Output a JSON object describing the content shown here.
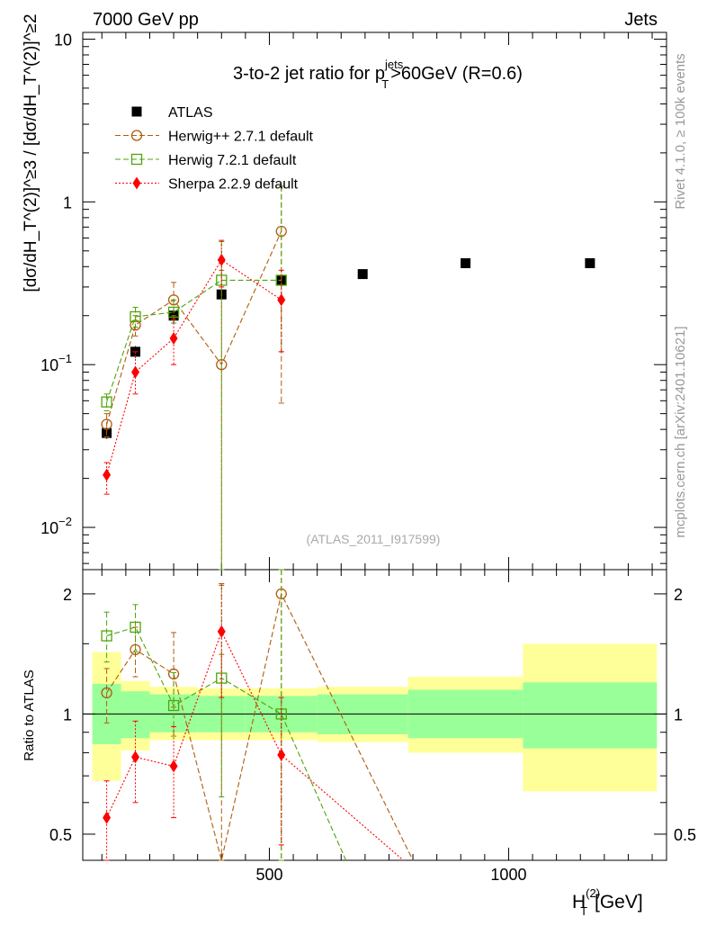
{
  "header": {
    "left": "7000 GeV pp",
    "right": "Jets"
  },
  "side_labels": {
    "rivet": "Rivet 4.1.0, ≥ 100k events",
    "mcplots": "mcplots.cern.ch [arXiv:2401.10621]"
  },
  "chart_data": {
    "type": "scatter",
    "title_main": "3-to-2 jet ratio for p",
    "title_sup": "jets",
    "title_sub": "T",
    "title_tail": ">60GeV (R=0.6)",
    "analysis_label": "(ATLAS_2011_I917599)",
    "ylabel": "[dσ/dH_T^(2)]^≥3 / [dσ/dH_T^(2)]^≥2",
    "ratio_ylabel": "Ratio to ATLAS",
    "xlabel_main": "H",
    "xlabel_sub": "T",
    "xlabel_sup": "(2)",
    "xlabel_unit": "[GeV]",
    "xlim": [
      110,
      1330
    ],
    "ylim": [
      0.0055,
      11
    ],
    "ratio_ylim": [
      0.43,
      2.3
    ],
    "x_ticks": [
      500,
      1000
    ],
    "y_ticks_main": [
      {
        "value": 10,
        "label": "10"
      },
      {
        "value": 1,
        "label": "1"
      },
      {
        "value": 0.1,
        "label": "10",
        "exp": "−1"
      },
      {
        "value": 0.01,
        "label": "10",
        "exp": "−2"
      }
    ],
    "y_ticks_ratio": [
      {
        "value": 2,
        "label": "2"
      },
      {
        "value": 1,
        "label": "1"
      },
      {
        "value": 0.5,
        "label": "0.5"
      }
    ],
    "bins": [
      {
        "lo": 130,
        "hi": 190,
        "band_green": [
          0.84,
          1.19
        ],
        "band_yellow": [
          0.68,
          1.43
        ]
      },
      {
        "lo": 190,
        "hi": 250,
        "band_green": [
          0.87,
          1.14
        ],
        "band_yellow": [
          0.81,
          1.21
        ]
      },
      {
        "lo": 250,
        "hi": 350,
        "band_green": [
          0.9,
          1.12
        ],
        "band_yellow": [
          0.86,
          1.17
        ]
      },
      {
        "lo": 350,
        "hi": 450,
        "band_green": [
          0.9,
          1.11
        ],
        "band_yellow": [
          0.86,
          1.16
        ]
      },
      {
        "lo": 450,
        "hi": 600,
        "band_green": [
          0.9,
          1.11
        ],
        "band_yellow": [
          0.86,
          1.16
        ]
      },
      {
        "lo": 600,
        "hi": 790,
        "band_green": [
          0.89,
          1.12
        ],
        "band_yellow": [
          0.85,
          1.17
        ]
      },
      {
        "lo": 790,
        "hi": 1030,
        "band_green": [
          0.87,
          1.15
        ],
        "band_yellow": [
          0.8,
          1.24
        ]
      },
      {
        "lo": 1030,
        "hi": 1310,
        "band_green": [
          0.82,
          1.2
        ],
        "band_yellow": [
          0.64,
          1.5
        ]
      }
    ],
    "series": [
      {
        "name": "ATLAS",
        "color": "#000000",
        "marker": "square-filled",
        "dash": "",
        "x": [
          160,
          220,
          300,
          400,
          525,
          695,
          910,
          1170
        ],
        "y": [
          0.038,
          0.12,
          0.2,
          0.27,
          0.33,
          0.36,
          0.42,
          0.42
        ],
        "err_lo": [
          0.035,
          0.11,
          0.18,
          0.25,
          0.31,
          0.34,
          0.4,
          0.4
        ],
        "err_hi": [
          0.041,
          0.13,
          0.22,
          0.29,
          0.35,
          0.38,
          0.44,
          0.44
        ]
      },
      {
        "name": "Herwig++ 2.7.1 default",
        "color": "#b15c0c",
        "marker": "circle-open",
        "dash": "6,3",
        "x": [
          160,
          220,
          300,
          400,
          525
        ],
        "y": [
          0.043,
          0.175,
          0.25,
          0.1,
          0.66
        ],
        "err_lo": [
          0.036,
          0.15,
          0.2,
          0.004,
          0.058
        ],
        "err_hi": [
          0.05,
          0.2,
          0.32,
          0.38,
          1.25
        ],
        "ratio": [
          1.13,
          1.45,
          1.26,
          0.38,
          2.0
        ],
        "ratio_err_lo": [
          0.95,
          1.24,
          1.04,
          0.05,
          0.18
        ],
        "ratio_err_hi": [
          1.3,
          1.65,
          1.6,
          1.41,
          3.8
        ]
      },
      {
        "name": "Herwig 7.2.1 default",
        "color": "#4fa40a",
        "marker": "square-open",
        "dash": "6,3",
        "x": [
          160,
          220,
          300,
          400,
          525
        ],
        "y": [
          0.059,
          0.197,
          0.21,
          0.33,
          0.33
        ],
        "err_lo": [
          0.052,
          0.17,
          0.18,
          0.004,
          0.12
        ],
        "err_hi": [
          0.066,
          0.225,
          0.25,
          0.57,
          1.25
        ],
        "ratio": [
          1.57,
          1.65,
          1.05,
          1.23,
          1.0
        ],
        "ratio_err_lo": [
          1.35,
          1.43,
          0.88,
          0.62,
          0.2
        ],
        "ratio_err_hi": [
          1.8,
          1.88,
          1.27,
          2.1,
          3.8
        ]
      },
      {
        "name": "Sherpa 2.2.9 default",
        "color": "#ff0000",
        "marker": "diamond-filled",
        "dash": "2,2",
        "x": [
          160,
          220,
          300,
          400,
          525
        ],
        "y": [
          0.021,
          0.09,
          0.145,
          0.44,
          0.25
        ],
        "err_lo": [
          0.016,
          0.066,
          0.1,
          0.3,
          0.12
        ],
        "err_hi": [
          0.025,
          0.12,
          0.19,
          0.58,
          0.38
        ],
        "ratio": [
          0.55,
          0.78,
          0.74,
          1.61,
          0.79
        ],
        "ratio_err_lo": [
          0.42,
          0.6,
          0.55,
          1.1,
          0.47
        ],
        "ratio_err_hi": [
          0.68,
          0.96,
          0.93,
          2.12,
          1.1
        ]
      }
    ],
    "ratio_tail": [
      {
        "name": "Herwig++ 2.7.1 default",
        "x": 800,
        "y": 0.4
      },
      {
        "name": "Herwig 7.2.1 default",
        "x": 660,
        "y": 0.4
      },
      {
        "name": "Sherpa 2.2.9 default",
        "x": 780,
        "y": 0.4
      }
    ]
  }
}
